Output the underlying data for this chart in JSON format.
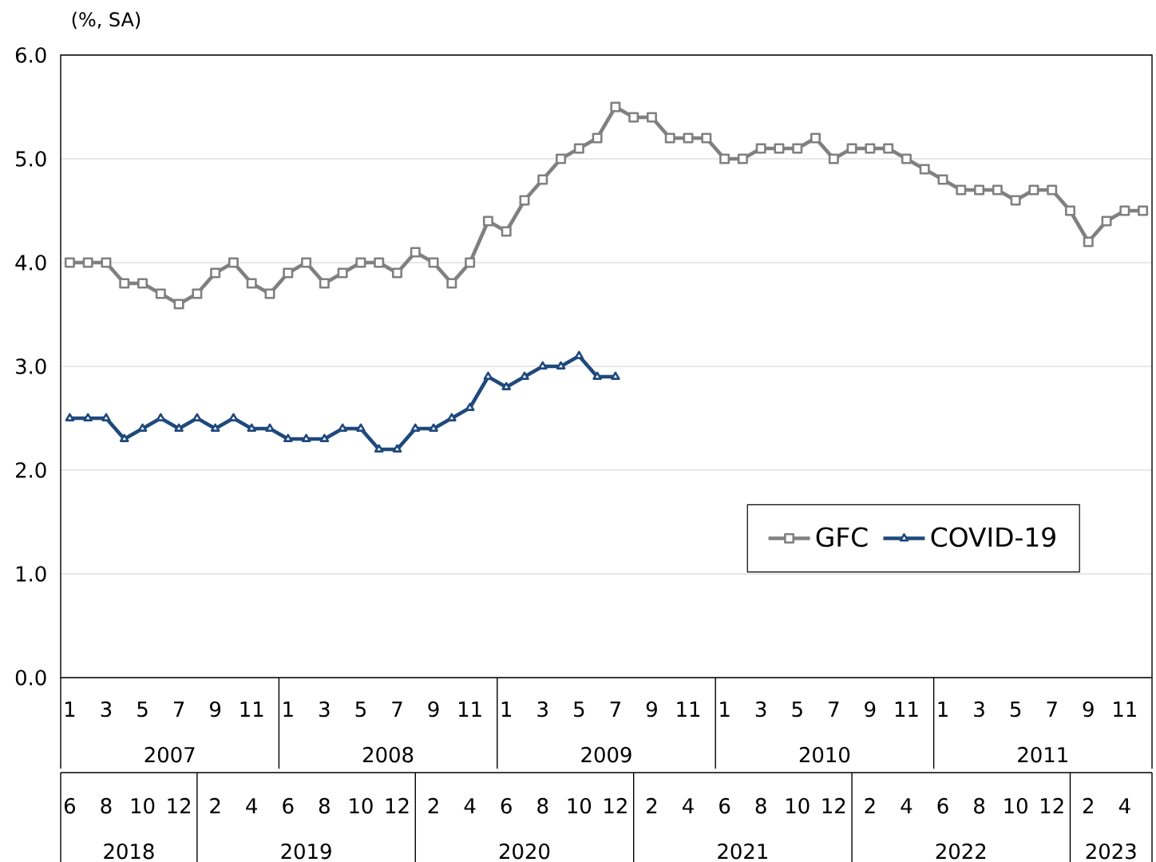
{
  "chart_data": {
    "type": "line",
    "ylabel": "(%, SA)",
    "categories": [
      "1",
      null,
      "3",
      null,
      "5",
      null,
      "7",
      null,
      "9",
      null,
      "11",
      null,
      "1",
      null,
      "3",
      null,
      "5",
      null,
      "7",
      null,
      "9",
      null,
      "11",
      null,
      "1",
      null,
      "3",
      null,
      "5",
      null,
      "7",
      null,
      "9",
      null,
      "11",
      null,
      "1",
      null,
      "3",
      null,
      "5",
      null,
      "7",
      null,
      "9",
      null,
      "11",
      null,
      "1",
      null,
      "3",
      null,
      "5",
      null,
      "7",
      null,
      "9",
      null,
      "11",
      null
    ],
    "series": [
      {
        "name": "GFC",
        "color": "#808080",
        "marker": "square",
        "values": [
          4.0,
          4.0,
          4.0,
          3.8,
          3.8,
          3.7,
          3.6,
          3.7,
          3.9,
          4.0,
          3.8,
          3.7,
          3.9,
          4.0,
          3.8,
          3.9,
          4.0,
          4.0,
          3.9,
          4.1,
          4.0,
          3.8,
          4.0,
          4.4,
          4.3,
          4.6,
          4.8,
          5.0,
          5.1,
          5.2,
          5.5,
          5.4,
          5.4,
          5.2,
          5.2,
          5.2,
          5.0,
          5.0,
          5.1,
          5.1,
          5.1,
          5.2,
          5.0,
          5.1,
          5.1,
          5.1,
          5.0,
          4.9,
          4.8,
          4.7,
          4.7,
          4.7,
          4.6,
          4.7,
          4.7,
          4.5,
          4.2,
          4.4,
          4.5,
          4.5
        ]
      },
      {
        "name": "COVID-19",
        "color": "#1f497d",
        "marker": "triangle",
        "values": [
          2.5,
          2.5,
          2.5,
          2.3,
          2.4,
          2.5,
          2.4,
          2.5,
          2.4,
          2.5,
          2.4,
          2.4,
          2.3,
          2.3,
          2.3,
          2.4,
          2.4,
          2.2,
          2.2,
          2.4,
          2.4,
          2.5,
          2.6,
          2.9,
          2.8,
          2.9,
          3.0,
          3.0,
          3.1,
          2.9,
          2.9,
          null,
          null,
          null,
          null,
          null,
          null,
          null,
          null,
          null,
          null,
          null,
          null,
          null,
          null,
          null,
          null,
          null,
          null,
          null,
          null,
          null,
          null,
          null,
          null,
          null,
          null,
          null,
          null,
          null
        ]
      }
    ],
    "ylim": [
      0,
      6
    ],
    "yticks": [
      {
        "value": 0,
        "label": "0.0"
      },
      {
        "value": 1,
        "label": "1.0"
      },
      {
        "value": 2,
        "label": "2.0"
      },
      {
        "value": 3,
        "label": "3.0"
      },
      {
        "value": 4,
        "label": "4.0"
      },
      {
        "value": 5,
        "label": "5.0"
      },
      {
        "value": 6,
        "label": "6.0"
      }
    ],
    "x2lim": [
      "2018-05-16",
      "2023-05-16"
    ],
    "x2ticks": [
      {
        "value": "2018-06",
        "label": "6"
      },
      {
        "value": "2018-08",
        "label": "8"
      },
      {
        "value": "2018-10",
        "label": "10"
      },
      {
        "value": "2018-12",
        "label": "12"
      },
      {
        "value": "2019-02",
        "label": "2"
      },
      {
        "value": "2019-04",
        "label": "4"
      },
      {
        "value": "2019-06",
        "label": "6"
      },
      {
        "value": "2019-08",
        "label": "8"
      },
      {
        "value": "2019-10",
        "label": "10"
      },
      {
        "value": "2019-12",
        "label": "12"
      },
      {
        "value": "2020-02",
        "label": "2"
      },
      {
        "value": "2020-04",
        "label": "4"
      },
      {
        "value": "2020-06",
        "label": "6"
      },
      {
        "value": "2020-08",
        "label": "8"
      },
      {
        "value": "2020-10",
        "label": "10"
      },
      {
        "value": "2020-12",
        "label": "12"
      },
      {
        "value": "2021-02",
        "label": "2"
      },
      {
        "value": "2021-04",
        "label": "4"
      },
      {
        "value": "2021-06",
        "label": "6"
      },
      {
        "value": "2021-08",
        "label": "8"
      },
      {
        "value": "2021-10",
        "label": "10"
      },
      {
        "value": "2021-12",
        "label": "12"
      },
      {
        "value": "2022-02",
        "label": "2"
      },
      {
        "value": "2022-04",
        "label": "4"
      },
      {
        "value": "2022-06",
        "label": "6"
      },
      {
        "value": "2022-08",
        "label": "8"
      },
      {
        "value": "2022-10",
        "label": "10"
      },
      {
        "value": "2022-12",
        "label": "12"
      },
      {
        "value": "2023-02",
        "label": "2"
      },
      {
        "value": "2023-04",
        "label": "4"
      }
    ],
    "annotations": [
      "2007",
      "2008",
      "2009",
      "2010",
      "2011",
      "2018",
      "2019",
      "2020",
      "2021",
      "2022",
      "2023"
    ],
    "grid": "y",
    "legend": "bottom right"
  }
}
